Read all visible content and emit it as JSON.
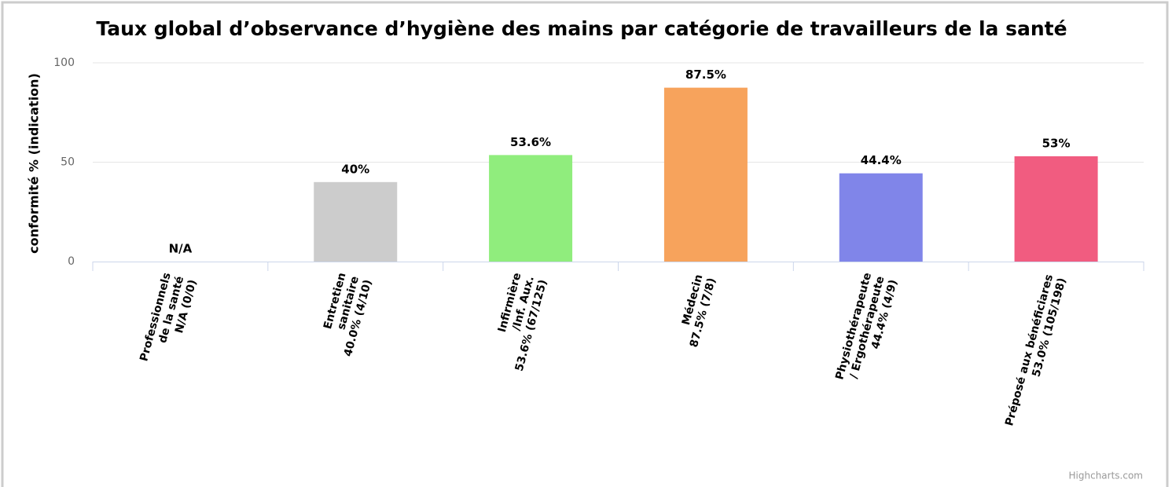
{
  "chart_data": {
    "type": "bar",
    "title": "Taux global d’observance d’hygiène des mains par catégorie de travailleurs de la santé",
    "y_axis_label": "conformité % (indication)",
    "credits": "Highcharts.com",
    "categories": [
      [
        "Professionnels",
        "de la santé",
        "N/A (0/0)"
      ],
      [
        "Entretien",
        "sanitaire",
        "40.0% (4/10)"
      ],
      [
        "Infirmière",
        "/Inf. Aux.",
        "53.6% (67/125)"
      ],
      [
        "Médecin",
        "87.5% (7/8)"
      ],
      [
        "Physiothérapeute",
        "/ Ergothérapeute",
        "44.4% (4/9)"
      ],
      [
        "Préposé aux bénéficiares",
        "53.0% (105/198)"
      ]
    ],
    "values": [
      null,
      40,
      53.6,
      87.5,
      44.4,
      53
    ],
    "value_labels": [
      "N/A",
      "40%",
      "53.6%",
      "87.5%",
      "44.4%",
      "53%"
    ],
    "colors": [
      null,
      "#cccccc",
      "#90ed7d",
      "#f7a35c",
      "#8085e9",
      "#f15c80"
    ],
    "ylim": [
      0,
      100
    ],
    "yticks": [
      0,
      50,
      100
    ],
    "grid": true
  }
}
